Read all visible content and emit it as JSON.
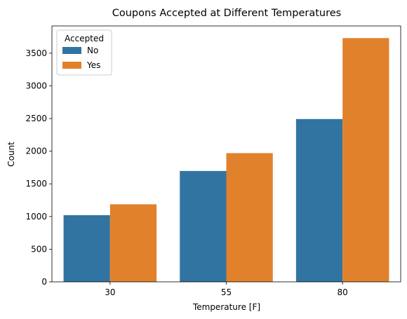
{
  "chart_data": {
    "type": "bar",
    "title": "Coupons Accepted at Different Temperatures",
    "xlabel": "Temperature [F]",
    "ylabel": "Count",
    "categories": [
      "30",
      "55",
      "80"
    ],
    "series": [
      {
        "name": "No",
        "color": "#3274a1",
        "values": [
          1021,
          1697,
          2492
        ]
      },
      {
        "name": "Yes",
        "color": "#e1812c",
        "values": [
          1187,
          1970,
          3731
        ]
      }
    ],
    "ylim": [
      0,
      3917
    ],
    "yticks": [
      0,
      500,
      1000,
      1500,
      2000,
      2500,
      3000,
      3500
    ],
    "legend": {
      "title": "Accepted",
      "placement": "top-left"
    },
    "grid": false
  }
}
